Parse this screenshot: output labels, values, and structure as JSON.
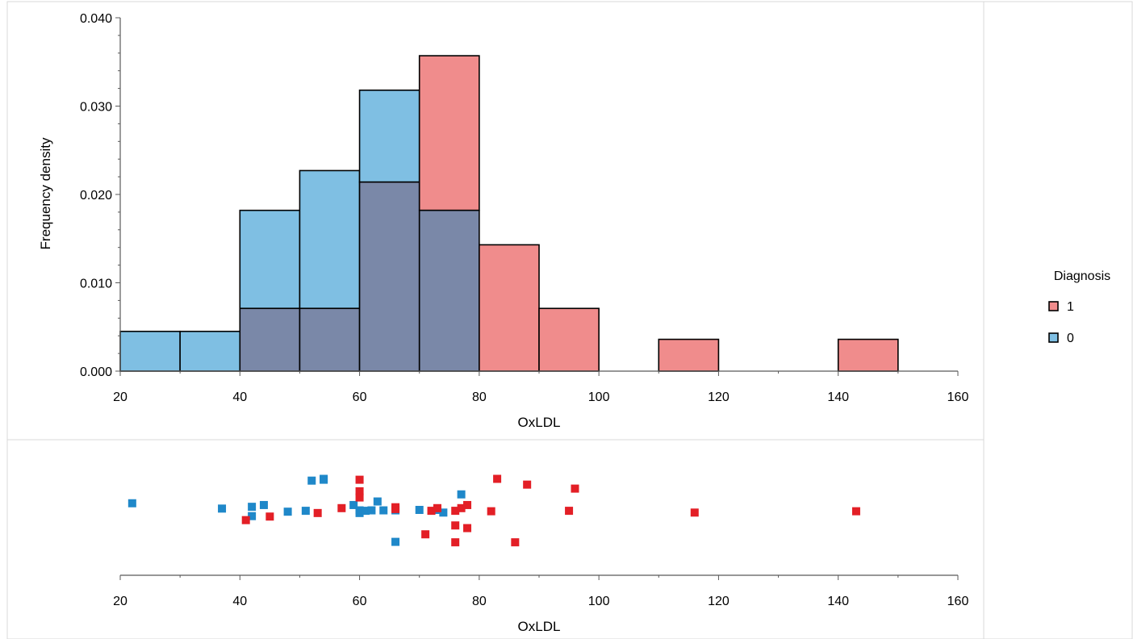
{
  "chart_data": [
    {
      "type": "histogram",
      "xlabel": "OxLDL",
      "ylabel": "Frequency density",
      "xlim": [
        20,
        160
      ],
      "ylim": [
        0,
        0.04
      ],
      "x_ticks": [
        "20",
        "40",
        "60",
        "80",
        "100",
        "120",
        "140",
        "160"
      ],
      "y_ticks": [
        "0.000",
        "0.010",
        "0.020",
        "0.030",
        "0.040"
      ],
      "bin_width": 10,
      "series": [
        {
          "name": "1",
          "color": "#f08c8c",
          "bins": [
            {
              "x0": 40,
              "x1": 50,
              "value": 0.0071
            },
            {
              "x0": 50,
              "x1": 60,
              "value": 0.0071
            },
            {
              "x0": 60,
              "x1": 70,
              "value": 0.0214
            },
            {
              "x0": 70,
              "x1": 80,
              "value": 0.0357
            },
            {
              "x0": 80,
              "x1": 90,
              "value": 0.0143
            },
            {
              "x0": 90,
              "x1": 100,
              "value": 0.0071
            },
            {
              "x0": 110,
              "x1": 120,
              "value": 0.0036
            },
            {
              "x0": 140,
              "x1": 150,
              "value": 0.0036
            }
          ]
        },
        {
          "name": "0",
          "color": "#7fbfe3",
          "bins": [
            {
              "x0": 20,
              "x1": 30,
              "value": 0.0045
            },
            {
              "x0": 30,
              "x1": 40,
              "value": 0.0045
            },
            {
              "x0": 40,
              "x1": 50,
              "value": 0.0182
            },
            {
              "x0": 50,
              "x1": 60,
              "value": 0.0227
            },
            {
              "x0": 60,
              "x1": 70,
              "value": 0.0318
            },
            {
              "x0": 70,
              "x1": 80,
              "value": 0.0182
            }
          ]
        }
      ],
      "overlap_color": "#7a88a8",
      "legend": {
        "title": "Diagnosis",
        "position": "right",
        "items": [
          {
            "label": "1",
            "color": "#f08c8c"
          },
          {
            "label": "0",
            "color": "#7fbfe3"
          }
        ]
      }
    },
    {
      "type": "scatter",
      "xlabel": "OxLDL",
      "xlim": [
        20,
        160
      ],
      "x_ticks": [
        "20",
        "40",
        "60",
        "80",
        "100",
        "120",
        "140",
        "160"
      ],
      "y_note": "random jitter, no y axis",
      "series": [
        {
          "name": "0",
          "color": "#1f88c9",
          "points": [
            {
              "x": 22,
              "y": 0.15
            },
            {
              "x": 37,
              "y": 0.03
            },
            {
              "x": 42,
              "y": 0.07
            },
            {
              "x": 42,
              "y": -0.14
            },
            {
              "x": 44,
              "y": 0.11
            },
            {
              "x": 48,
              "y": -0.04
            },
            {
              "x": 51,
              "y": -0.02
            },
            {
              "x": 52,
              "y": 0.66
            },
            {
              "x": 54,
              "y": 0.68
            },
            {
              "x": 54,
              "y": 0.7
            },
            {
              "x": 59,
              "y": 0.11
            },
            {
              "x": 60,
              "y": -0.01
            },
            {
              "x": 60,
              "y": -0.07
            },
            {
              "x": 61,
              "y": -0.02
            },
            {
              "x": 62,
              "y": -0.01
            },
            {
              "x": 63,
              "y": 0.19
            },
            {
              "x": 64,
              "y": -0.01
            },
            {
              "x": 66,
              "y": -0.01
            },
            {
              "x": 66,
              "y": -0.72
            },
            {
              "x": 70,
              "y": 0.0
            },
            {
              "x": 73,
              "y": 0.0
            },
            {
              "x": 74,
              "y": -0.06
            },
            {
              "x": 77,
              "y": 0.35
            }
          ]
        },
        {
          "name": "1",
          "color": "#e31f26",
          "points": [
            {
              "x": 41,
              "y": -0.23
            },
            {
              "x": 45,
              "y": -0.15
            },
            {
              "x": 53,
              "y": -0.07
            },
            {
              "x": 57,
              "y": 0.04
            },
            {
              "x": 60,
              "y": 0.68
            },
            {
              "x": 60,
              "y": 0.42
            },
            {
              "x": 60,
              "y": 0.28
            },
            {
              "x": 66,
              "y": 0.06
            },
            {
              "x": 66,
              "y": 0.02
            },
            {
              "x": 71,
              "y": -0.55
            },
            {
              "x": 72,
              "y": -0.02
            },
            {
              "x": 73,
              "y": 0.04
            },
            {
              "x": 76,
              "y": -0.02
            },
            {
              "x": 76,
              "y": -0.35
            },
            {
              "x": 76,
              "y": -0.73
            },
            {
              "x": 77,
              "y": 0.04
            },
            {
              "x": 78,
              "y": 0.11
            },
            {
              "x": 78,
              "y": -0.41
            },
            {
              "x": 82,
              "y": -0.03
            },
            {
              "x": 83,
              "y": 0.7
            },
            {
              "x": 86,
              "y": -0.73
            },
            {
              "x": 88,
              "y": 0.57
            },
            {
              "x": 95,
              "y": -0.02
            },
            {
              "x": 96,
              "y": 0.48
            },
            {
              "x": 116,
              "y": -0.06
            },
            {
              "x": 143,
              "y": -0.03
            }
          ]
        }
      ]
    }
  ]
}
